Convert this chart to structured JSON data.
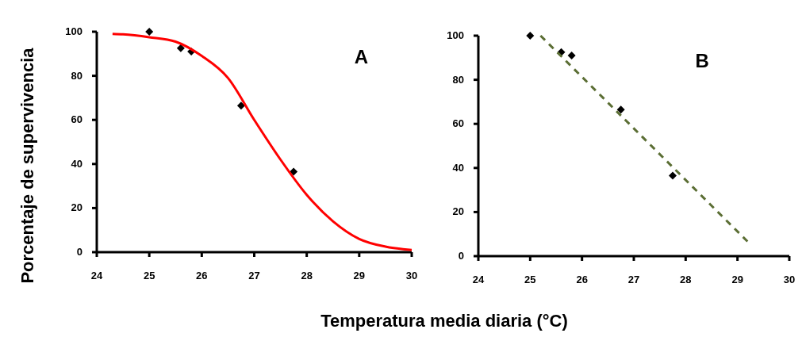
{
  "chart_data": [
    {
      "type": "scatter",
      "ylabel": "Porcentaje de supervivencia",
      "annotations": [
        "A"
      ],
      "xlim": [
        24,
        30
      ],
      "xticks": [
        24,
        25,
        26,
        27,
        28,
        29,
        30
      ],
      "ylim": [
        0,
        100
      ],
      "yticks": [
        0,
        20,
        40,
        60,
        80,
        100
      ],
      "grid": false,
      "series": [
        {
          "color": "#000000",
          "marker": "diamond",
          "x": [
            25,
            25.6,
            25.8,
            26.75,
            27.75
          ],
          "values": [
            100,
            92.5,
            91,
            66.5,
            36.5
          ]
        },
        {
          "type": "line",
          "color": "#ff0000",
          "marker": "none",
          "line_style": "solid",
          "x": [
            24.3,
            24.5,
            25,
            25.5,
            26,
            26.5,
            27,
            27.5,
            28,
            28.5,
            29,
            29.5,
            30
          ],
          "values": [
            99,
            98.8,
            97.5,
            95.5,
            89,
            79,
            60,
            42,
            26,
            14,
            6,
            2.5,
            1
          ]
        }
      ]
    },
    {
      "type": "scatter",
      "xlabel": "Temperatura media diaria (°C)",
      "annotations": [
        "B"
      ],
      "xlim": [
        24,
        30
      ],
      "xticks": [
        24,
        25,
        26,
        27,
        28,
        29,
        30
      ],
      "ylim": [
        0,
        100
      ],
      "yticks": [
        0,
        20,
        40,
        60,
        80,
        100
      ],
      "grid": false,
      "series": [
        {
          "color": "#000000",
          "marker": "diamond",
          "x": [
            25,
            25.6,
            25.8,
            26.75,
            27.75
          ],
          "values": [
            100,
            92.5,
            91,
            66.5,
            36.5
          ]
        },
        {
          "type": "line",
          "color": "#5b6e34",
          "marker": "none",
          "line_style": "dashed",
          "x": [
            25.2,
            29.2
          ],
          "values": [
            100,
            6.5
          ]
        }
      ]
    }
  ]
}
